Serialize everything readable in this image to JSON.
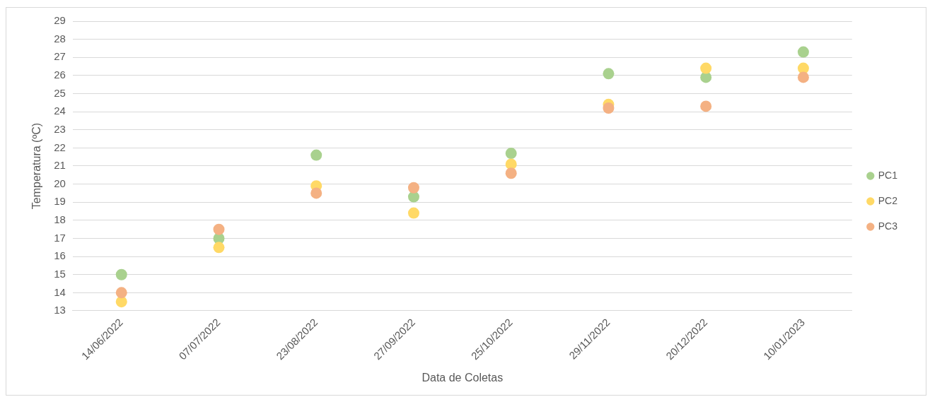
{
  "chart_data": {
    "type": "scatter",
    "xlabel": "Data de Coletas",
    "ylabel": "Temperatura (ºC)",
    "categories": [
      "14/06/2022",
      "07/07/2022",
      "23/08/2022",
      "27/09/2022",
      "25/10/2022",
      "29/11/2022",
      "20/12/2022",
      "10/01/2023"
    ],
    "series": [
      {
        "name": "PC1",
        "color": "#a9d18e",
        "values": [
          15.0,
          17.0,
          21.6,
          19.3,
          21.7,
          26.1,
          25.9,
          27.3
        ]
      },
      {
        "name": "PC2",
        "color": "#ffd966",
        "values": [
          13.5,
          16.5,
          19.9,
          18.4,
          21.1,
          24.4,
          26.4,
          26.4
        ]
      },
      {
        "name": "PC3",
        "color": "#f4b183",
        "values": [
          14.0,
          17.5,
          19.5,
          19.8,
          20.6,
          24.2,
          24.3,
          25.9
        ]
      }
    ],
    "ylim": [
      13,
      29
    ],
    "yticks": [
      13,
      14,
      15,
      16,
      17,
      18,
      19,
      20,
      21,
      22,
      23,
      24,
      25,
      26,
      27,
      28,
      29
    ],
    "grid": "y",
    "legend": "right",
    "marker": "circle"
  }
}
